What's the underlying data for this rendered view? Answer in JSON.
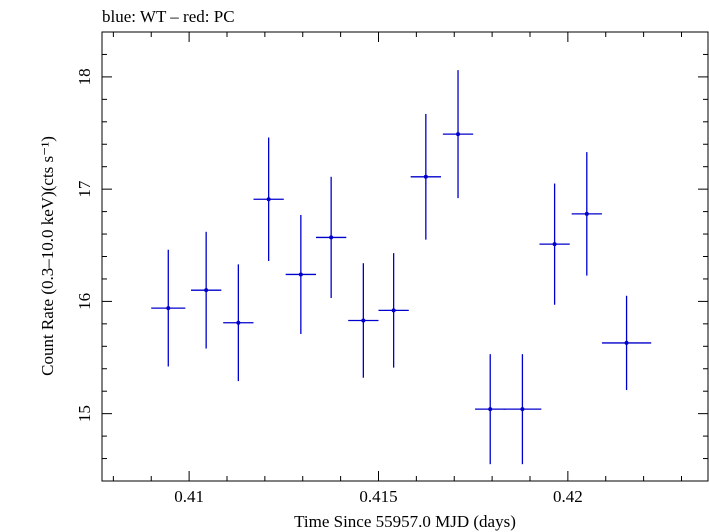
{
  "chart_data": {
    "type": "scatter",
    "title": "blue: WT – red: PC",
    "xlabel": "Time Since 55957.0 MJD (days)",
    "ylabel": "Count Rate (0.3–10.0 keV)(cts s⁻¹)",
    "xlim": [
      0.4077,
      0.4237
    ],
    "ylim": [
      14.4,
      18.4
    ],
    "x_ticks": [
      {
        "value": 0.41,
        "label": "0.41"
      },
      {
        "value": 0.415,
        "label": "0.415"
      },
      {
        "value": 0.42,
        "label": "0.42"
      }
    ],
    "y_ticks": [
      {
        "value": 15,
        "label": "15"
      },
      {
        "value": 16,
        "label": "16"
      },
      {
        "value": 17,
        "label": "17"
      },
      {
        "value": 18,
        "label": "18"
      }
    ],
    "grid": false,
    "legend": "none",
    "series": [
      {
        "color": "#0000cc",
        "points": [
          {
            "x": 0.40945,
            "xerr": 0.00045,
            "y": 15.94,
            "yerr": 0.52
          },
          {
            "x": 0.41045,
            "xerr": 0.0004,
            "y": 16.1,
            "yerr": 0.52
          },
          {
            "x": 0.4113,
            "xerr": 0.0004,
            "y": 15.81,
            "yerr": 0.52
          },
          {
            "x": 0.4121,
            "xerr": 0.0004,
            "y": 16.91,
            "yerr": 0.55
          },
          {
            "x": 0.41295,
            "xerr": 0.0004,
            "y": 16.24,
            "yerr": 0.53
          },
          {
            "x": 0.41375,
            "xerr": 0.0004,
            "y": 16.57,
            "yerr": 0.54
          },
          {
            "x": 0.4146,
            "xerr": 0.0004,
            "y": 15.83,
            "yerr": 0.51
          },
          {
            "x": 0.4154,
            "xerr": 0.0004,
            "y": 15.92,
            "yerr": 0.51
          },
          {
            "x": 0.41625,
            "xerr": 0.0004,
            "y": 17.11,
            "yerr": 0.56
          },
          {
            "x": 0.4171,
            "xerr": 0.0004,
            "y": 17.49,
            "yerr": 0.57
          },
          {
            "x": 0.41795,
            "xerr": 0.0004,
            "y": 15.04,
            "yerr": 0.49
          },
          {
            "x": 0.4188,
            "xerr": 0.0005,
            "y": 15.04,
            "yerr": 0.49
          },
          {
            "x": 0.41965,
            "xerr": 0.0004,
            "y": 16.51,
            "yerr": 0.54
          },
          {
            "x": 0.4205,
            "xerr": 0.0004,
            "y": 16.78,
            "yerr": 0.55
          },
          {
            "x": 0.42155,
            "xerr": 0.00065,
            "y": 15.63,
            "yerr": 0.42
          }
        ]
      }
    ]
  }
}
